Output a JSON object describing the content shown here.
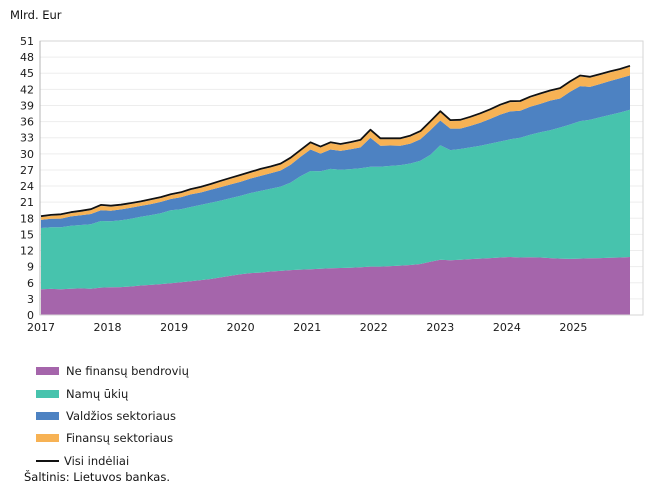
{
  "y_axis_title": "Mlrd. Eur",
  "source_note": "Šaltinis: Lietuvos bankas.",
  "colors": {
    "nfc": "#a565ab",
    "households": "#47c3ad",
    "government": "#4d82c2",
    "financial": "#f7b254",
    "total_line": "#111111",
    "grid": "#ededed",
    "plot_border": "#d6d6d6",
    "axis": "#b5b5b5",
    "text": "#1a1a1a"
  },
  "legend": [
    {
      "label": "Ne finansų bendrovių",
      "color": "#a565ab",
      "type": "area"
    },
    {
      "label": "Namų ūkių",
      "color": "#47c3ad",
      "type": "area"
    },
    {
      "label": "Valdžios sektoriaus",
      "color": "#4d82c2",
      "type": "area"
    },
    {
      "label": "Finansų sektoriaus",
      "color": "#f7b254",
      "type": "area"
    },
    {
      "label": "Visi indėliai",
      "color": "#111111",
      "type": "line"
    }
  ],
  "chart_data": {
    "type": "area",
    "stacked": true,
    "title": "",
    "ylabel": "Mlrd. Eur",
    "xlabel": "",
    "ylim": [
      0,
      51
    ],
    "ytick_step": 3,
    "grid": "horizontal-only",
    "legend_position": "bottom-left",
    "x_start_year": 2017,
    "x_end_year": 2025.85,
    "xticks": [
      "2017",
      "2018",
      "2019",
      "2020",
      "2021",
      "2022",
      "2023",
      "2024",
      "2025"
    ],
    "units": "Mlrd. Eur",
    "series": [
      {
        "name": "Ne finansų bendrovių",
        "color": "#a565ab",
        "values": [
          4.8,
          4.85,
          4.8,
          4.9,
          4.95,
          4.9,
          5.1,
          5.15,
          5.2,
          5.3,
          5.5,
          5.6,
          5.75,
          5.9,
          6.1,
          6.3,
          6.5,
          6.7,
          7.0,
          7.3,
          7.6,
          7.8,
          7.9,
          8.1,
          8.2,
          8.35,
          8.45,
          8.5,
          8.6,
          8.7,
          8.75,
          8.8,
          8.9,
          9.0,
          9.0,
          9.1,
          9.2,
          9.3,
          9.5,
          9.9,
          10.3,
          10.2,
          10.3,
          10.4,
          10.5,
          10.6,
          10.7,
          10.8,
          10.7,
          10.75,
          10.7,
          10.6,
          10.5,
          10.45,
          10.5,
          10.55,
          10.6,
          10.65,
          10.7,
          10.8
        ]
      },
      {
        "name": "Namų ūkių",
        "color": "#47c3ad",
        "values": [
          11.4,
          11.5,
          11.55,
          11.7,
          11.8,
          12.0,
          12.4,
          12.3,
          12.45,
          12.6,
          12.8,
          13.0,
          13.2,
          13.6,
          13.6,
          13.8,
          14.0,
          14.2,
          14.3,
          14.45,
          14.6,
          14.9,
          15.2,
          15.4,
          15.7,
          16.3,
          17.4,
          18.3,
          18.15,
          18.5,
          18.3,
          18.35,
          18.4,
          18.6,
          18.6,
          18.65,
          18.7,
          18.9,
          19.2,
          19.9,
          21.3,
          20.5,
          20.6,
          20.8,
          21.0,
          21.3,
          21.6,
          21.9,
          22.3,
          22.8,
          23.3,
          23.8,
          24.4,
          25.0,
          25.6,
          25.8,
          26.2,
          26.6,
          27.0,
          27.4
        ]
      },
      {
        "name": "Valdžios sektoriaus",
        "color": "#4d82c2",
        "values": [
          1.5,
          1.55,
          1.6,
          1.75,
          1.8,
          1.9,
          2.0,
          1.95,
          2.0,
          2.05,
          2.0,
          2.05,
          2.1,
          2.1,
          2.2,
          2.35,
          2.3,
          2.4,
          2.5,
          2.55,
          2.6,
          2.7,
          2.8,
          2.9,
          3.0,
          3.3,
          3.6,
          4.0,
          3.3,
          3.6,
          3.5,
          3.7,
          3.9,
          5.4,
          3.9,
          3.8,
          3.6,
          3.7,
          4.0,
          4.6,
          4.6,
          4.0,
          3.8,
          4.0,
          4.3,
          4.6,
          5.0,
          5.2,
          5.0,
          5.2,
          5.3,
          5.5,
          5.4,
          6.1,
          6.5,
          6.1,
          6.2,
          6.3,
          6.35,
          6.4
        ]
      },
      {
        "name": "Finansų sektoriaus",
        "color": "#f7b254",
        "values": [
          0.5,
          0.55,
          0.6,
          0.6,
          0.65,
          0.7,
          0.8,
          0.75,
          0.7,
          0.7,
          0.65,
          0.7,
          0.7,
          0.7,
          0.75,
          0.8,
          0.85,
          0.9,
          1.0,
          1.05,
          1.1,
          1.05,
          1.1,
          1.05,
          1.1,
          1.15,
          1.1,
          1.15,
          1.1,
          1.15,
          1.1,
          1.15,
          1.2,
          1.3,
          1.2,
          1.15,
          1.2,
          1.3,
          1.35,
          1.45,
          1.55,
          1.4,
          1.45,
          1.5,
          1.55,
          1.6,
          1.65,
          1.7,
          1.65,
          1.7,
          1.75,
          1.7,
          1.75,
          1.75,
          1.8,
          1.7,
          1.65,
          1.6,
          1.55,
          1.6
        ]
      }
    ],
    "total_line": {
      "name": "Visi indėliai",
      "color": "#111111",
      "definition": "sum of all stacked series"
    }
  }
}
